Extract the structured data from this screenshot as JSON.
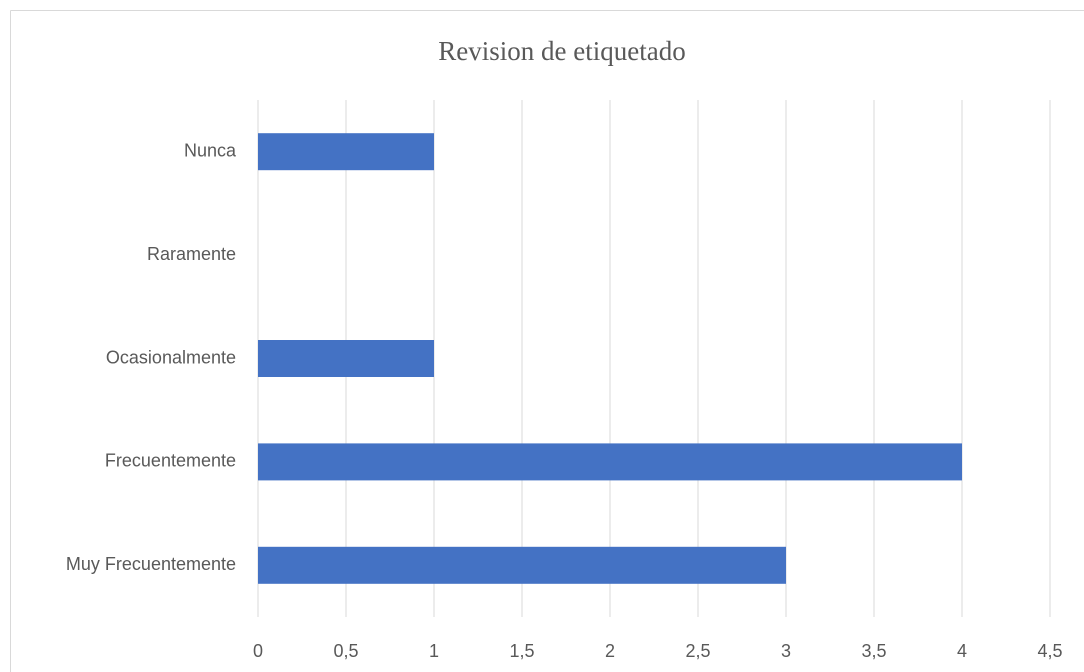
{
  "chart_data": {
    "type": "hbar",
    "title": "Revision de etiquetado",
    "categories": [
      "Nunca",
      "Raramente",
      "Ocasionalmente",
      "Frecuentemente",
      "Muy Frecuentemente"
    ],
    "values": [
      1,
      0,
      1,
      4,
      3
    ],
    "color": "#4472c4",
    "xlim": [
      0,
      4.5
    ],
    "xticks": [
      0,
      {
        "value": 0.5,
        "label": "0,5"
      },
      1,
      {
        "value": 1.5,
        "label": "1,5"
      },
      2,
      {
        "value": 2.5,
        "label": "2,5"
      },
      3,
      {
        "value": 3.5,
        "label": "3,5"
      },
      4,
      {
        "value": 4.5,
        "label": "4,5"
      }
    ],
    "grid": true
  }
}
